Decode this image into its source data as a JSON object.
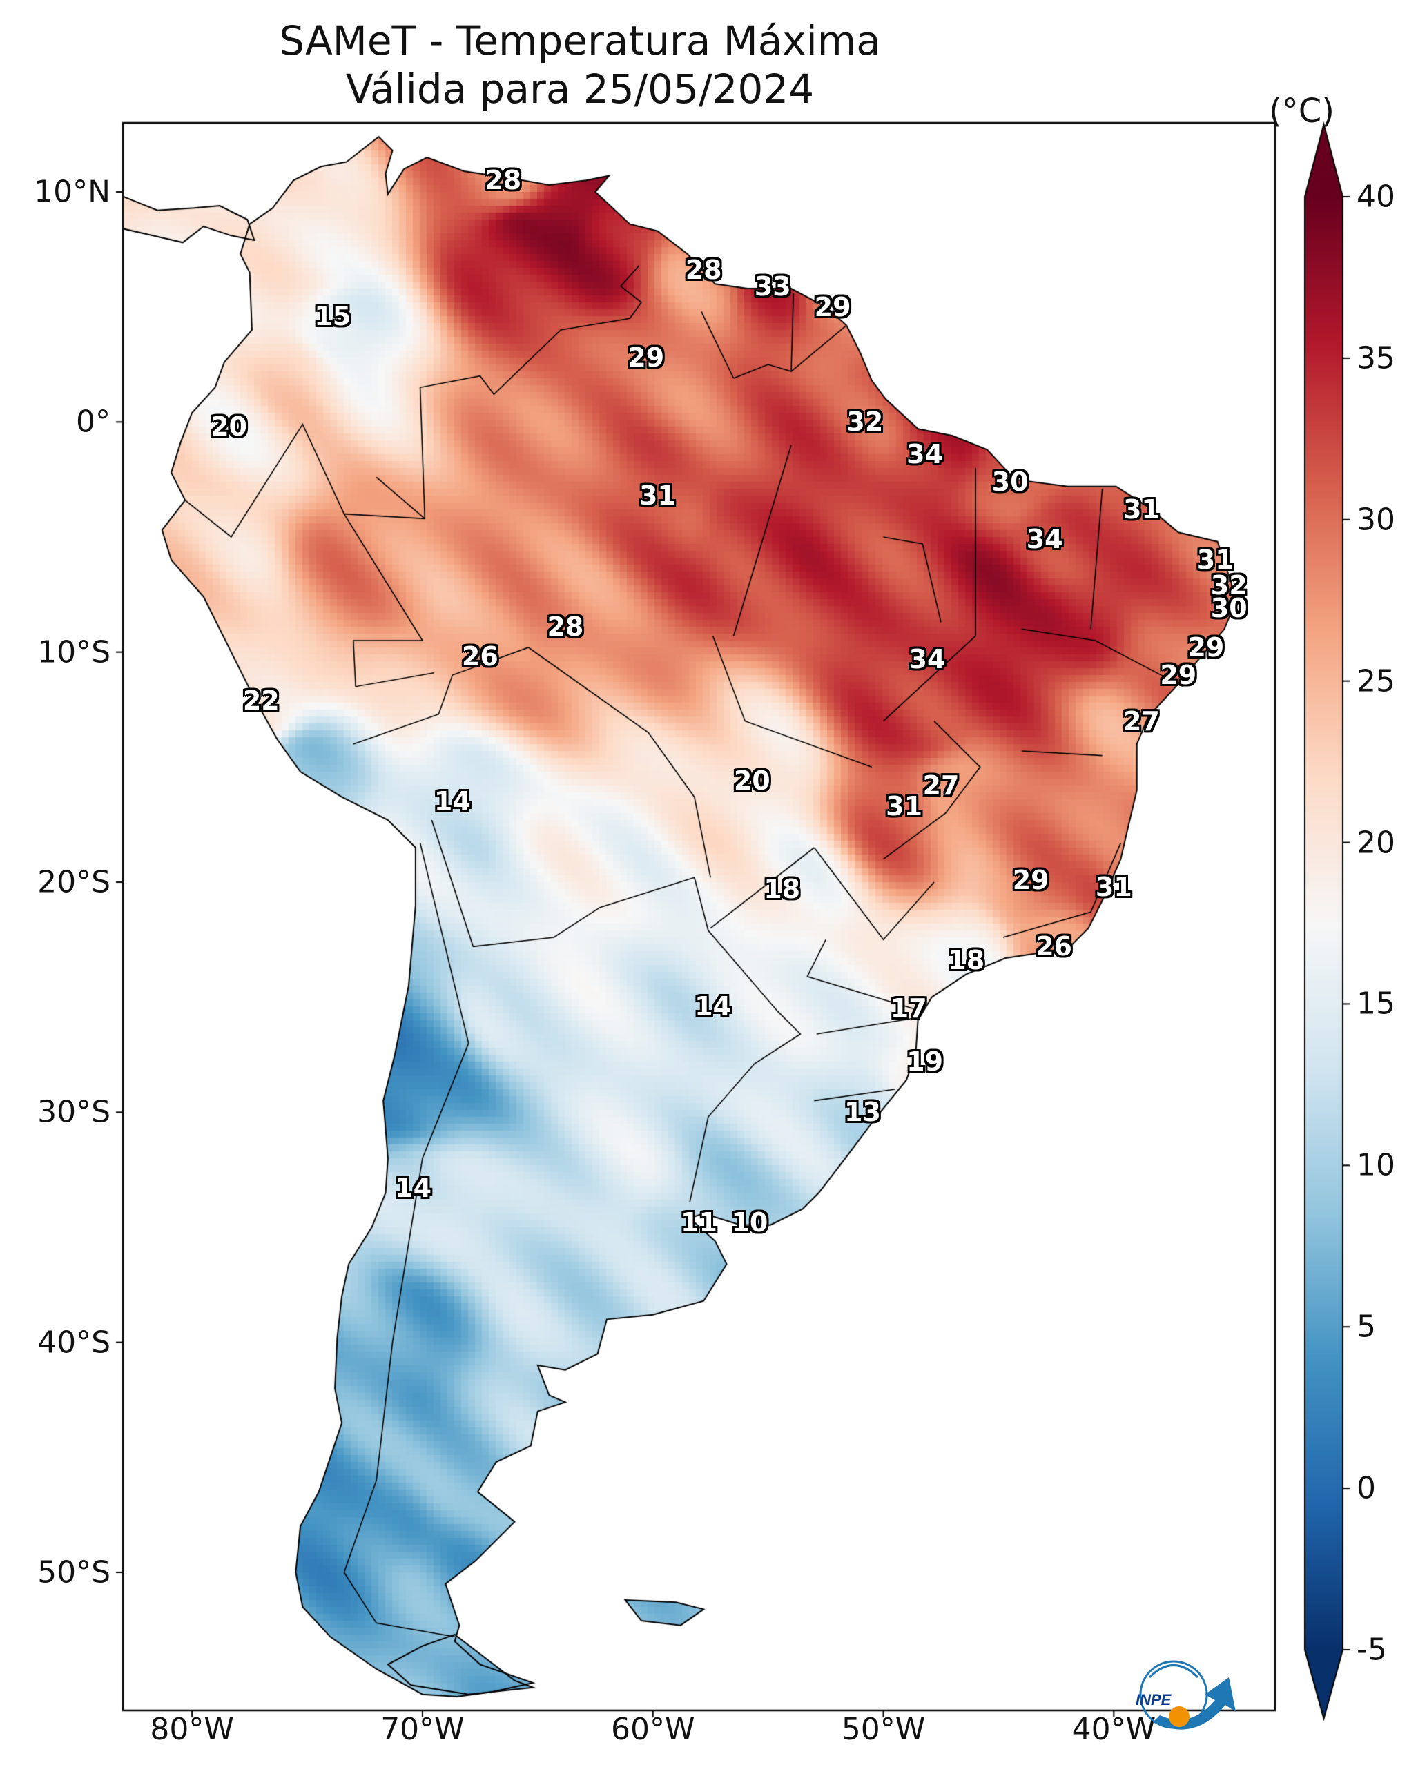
{
  "title": {
    "line1": "SAMeT - Temperatura Máxima",
    "line2": "Válida para 25/05/2024"
  },
  "colorbar": {
    "unit": "(°C)",
    "ticks": [
      "40",
      "35",
      "30",
      "25",
      "20",
      "15",
      "10",
      "5",
      "0",
      "-5"
    ],
    "range": [
      -5,
      40
    ],
    "colors": [
      "#08306b",
      "#2166ac",
      "#4393c3",
      "#92c5de",
      "#d1e5f0",
      "#f7f7f7",
      "#fddbc7",
      "#f4a582",
      "#d6604d",
      "#b2182b",
      "#67001f"
    ]
  },
  "axes": {
    "lat_ticks": [
      "10°N",
      "0°",
      "10°S",
      "20°S",
      "30°S",
      "40°S",
      "50°S"
    ],
    "lon_ticks": [
      "80°W",
      "70°W",
      "60°W",
      "50°W",
      "40°W"
    ]
  },
  "temperature_labels": [
    {
      "text": "28",
      "lon": -66.5,
      "lat": 10.5
    },
    {
      "text": "15",
      "lon": -73.9,
      "lat": 4.6
    },
    {
      "text": "28",
      "lon": -57.8,
      "lat": 6.6
    },
    {
      "text": "33",
      "lon": -54.8,
      "lat": 5.9
    },
    {
      "text": "29",
      "lon": -52.2,
      "lat": 5.0
    },
    {
      "text": "29",
      "lon": -60.3,
      "lat": 2.8
    },
    {
      "text": "20",
      "lon": -78.4,
      "lat": -0.2
    },
    {
      "text": "32",
      "lon": -50.8,
      "lat": 0.0
    },
    {
      "text": "34",
      "lon": -48.2,
      "lat": -1.4
    },
    {
      "text": "30",
      "lon": -44.5,
      "lat": -2.6
    },
    {
      "text": "31",
      "lon": -38.8,
      "lat": -3.8
    },
    {
      "text": "31",
      "lon": -59.8,
      "lat": -3.2
    },
    {
      "text": "34",
      "lon": -43.0,
      "lat": -5.1
    },
    {
      "text": "31",
      "lon": -35.6,
      "lat": -6.0
    },
    {
      "text": "32",
      "lon": -35.0,
      "lat": -7.1
    },
    {
      "text": "30",
      "lon": -35.0,
      "lat": -8.1
    },
    {
      "text": "28",
      "lon": -63.8,
      "lat": -8.9
    },
    {
      "text": "26",
      "lon": -67.5,
      "lat": -10.2
    },
    {
      "text": "34",
      "lon": -48.1,
      "lat": -10.3
    },
    {
      "text": "29",
      "lon": -36.0,
      "lat": -9.8
    },
    {
      "text": "29",
      "lon": -37.2,
      "lat": -11.0
    },
    {
      "text": "22",
      "lon": -77.0,
      "lat": -12.1
    },
    {
      "text": "27",
      "lon": -38.8,
      "lat": -13.0
    },
    {
      "text": "20",
      "lon": -55.7,
      "lat": -15.6
    },
    {
      "text": "27",
      "lon": -47.5,
      "lat": -15.8
    },
    {
      "text": "31",
      "lon": -49.1,
      "lat": -16.7
    },
    {
      "text": "14",
      "lon": -68.7,
      "lat": -16.5
    },
    {
      "text": "18",
      "lon": -54.4,
      "lat": -20.3
    },
    {
      "text": "29",
      "lon": -43.6,
      "lat": -19.9
    },
    {
      "text": "31",
      "lon": -40.0,
      "lat": -20.2
    },
    {
      "text": "26",
      "lon": -42.6,
      "lat": -22.8
    },
    {
      "text": "18",
      "lon": -46.4,
      "lat": -23.4
    },
    {
      "text": "14",
      "lon": -57.4,
      "lat": -25.4
    },
    {
      "text": "17",
      "lon": -48.9,
      "lat": -25.5
    },
    {
      "text": "19",
      "lon": -48.2,
      "lat": -27.8
    },
    {
      "text": "13",
      "lon": -50.9,
      "lat": -30.0
    },
    {
      "text": "14",
      "lon": -70.4,
      "lat": -33.3
    },
    {
      "text": "11",
      "lon": -58.0,
      "lat": -34.8
    },
    {
      "text": "10",
      "lon": -55.8,
      "lat": -34.8
    }
  ],
  "logo": {
    "text": "INPE"
  }
}
